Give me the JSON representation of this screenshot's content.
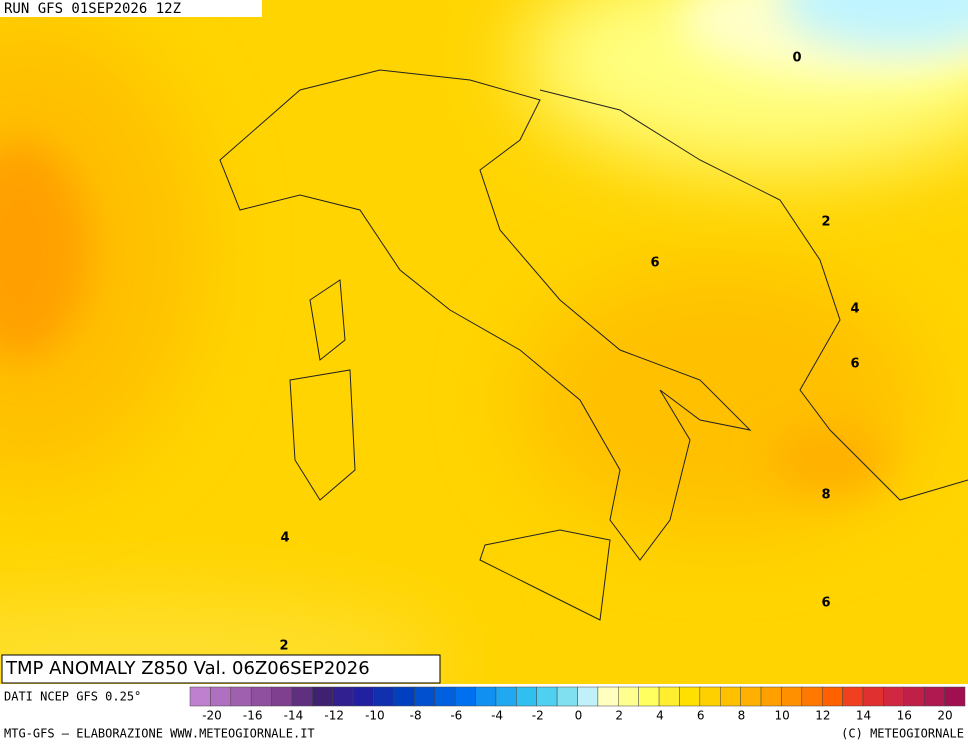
{
  "header": {
    "run": "RUN GFS 01SEP2026 12Z",
    "title": "TMP ANOMALY Z850 Val. 06Z06SEP2026"
  },
  "map": {
    "contour_labels": [
      "0",
      "2",
      "4",
      "6",
      "6",
      "8",
      "6",
      "4",
      "2"
    ]
  },
  "colorbar": {
    "source": "DATI NCEP GFS 0.25°",
    "colors": [
      "#c080d0",
      "#b070c0",
      "#a060b0",
      "#9050a0",
      "#804090",
      "#603080",
      "#402070",
      "#302090",
      "#2020a0",
      "#1030b0",
      "#0040c0",
      "#0050d0",
      "#0060e0",
      "#0070f0",
      "#1090f0",
      "#20a8f0",
      "#30c0f0",
      "#50d0f0",
      "#80e0f0",
      "#c0f0f8",
      "#ffffc0",
      "#ffff90",
      "#ffff60",
      "#ffee30",
      "#ffe000",
      "#ffd000",
      "#ffc000",
      "#ffb000",
      "#ffa000",
      "#ff9000",
      "#ff7800",
      "#ff6000",
      "#f04020",
      "#e03030",
      "#d02840",
      "#c02048",
      "#b01850",
      "#a01050"
    ],
    "labels": [
      "-20",
      "-16",
      "-14",
      "-12",
      "-10",
      "-8",
      "-6",
      "-4",
      "-2",
      "0",
      "2",
      "4",
      "6",
      "8",
      "10",
      "12",
      "14",
      "16",
      "20"
    ]
  },
  "footer": {
    "left": "MTG-GFS — ELABORAZIONE WWW.METEOGIORNALE.IT",
    "right": "(C) METEOGIORNALE"
  }
}
